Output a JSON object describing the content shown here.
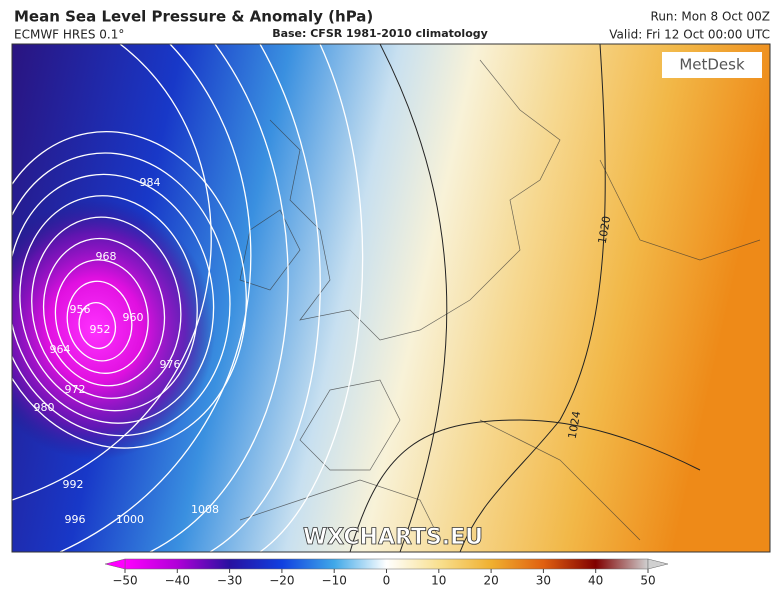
{
  "header": {
    "title": "Mean Sea Level Pressure & Anomaly (hPa)",
    "model": "ECMWF HRES 0.1°",
    "base": "Base: CFSR 1981-2010 climatology",
    "run": "Run: Mon 8 Oct 00Z",
    "valid": "Valid: Fri 12 Oct 00:00 UTC"
  },
  "logos": {
    "metdesk": "MetDesk",
    "watermark": "WXCHARTS.EU"
  },
  "isobar_labels": [
    968,
    984,
    956,
    952,
    960,
    964,
    976,
    972,
    980,
    992,
    996,
    1000,
    1008,
    1020,
    1024
  ],
  "colorbar": {
    "range": [
      -50,
      50
    ],
    "ticks": [
      {
        "value": -50,
        "label": "−50"
      },
      {
        "value": -40,
        "label": "−40"
      },
      {
        "value": -30,
        "label": "−30"
      },
      {
        "value": -20,
        "label": "−20"
      },
      {
        "value": -10,
        "label": "−10"
      },
      0,
      10,
      20,
      30,
      40,
      50
    ]
  }
}
